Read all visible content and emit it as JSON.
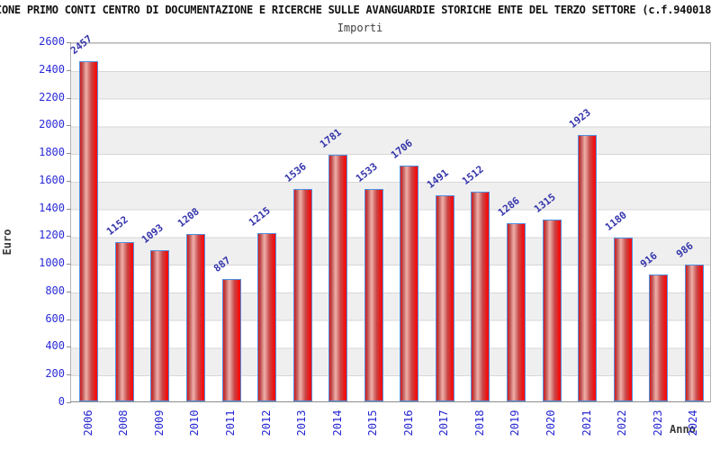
{
  "header": {
    "title": "IONE PRIMO CONTI CENTRO DI DOCUMENTAZIONE E RICERCHE SULLE AVANGUARDIE STORICHE ENTE DEL TERZO SETTORE (c.f.940018",
    "subtitle": "Importi"
  },
  "chart_data": {
    "type": "bar",
    "title": "Importi",
    "categories": [
      "2006",
      "2008",
      "2009",
      "2010",
      "2011",
      "2012",
      "2013",
      "2014",
      "2015",
      "2016",
      "2017",
      "2018",
      "2019",
      "2020",
      "2021",
      "2022",
      "2023",
      "2024"
    ],
    "values": [
      2457,
      1152,
      1093,
      1208,
      887,
      1215,
      1536,
      1781,
      1533,
      1706,
      1491,
      1512,
      1286,
      1315,
      1923,
      1180,
      916,
      986
    ],
    "xlabel": "Anno",
    "ylabel": "Euro",
    "ylim": [
      0,
      2600
    ],
    "ytick_step": 200,
    "grid": true,
    "legend": "none",
    "colors": {
      "bar_fill": "#ee1212",
      "bar_fill_highlight": "#efb0aa",
      "bar_border": "#4f8fe0",
      "tick_label": "#2a2ad8",
      "category_label": "#2626d2",
      "value_label": "#3434ac",
      "axis_title": "#3a3a3a",
      "band_stripe": "#efefef",
      "grid_line": "#d7d7d7"
    }
  }
}
